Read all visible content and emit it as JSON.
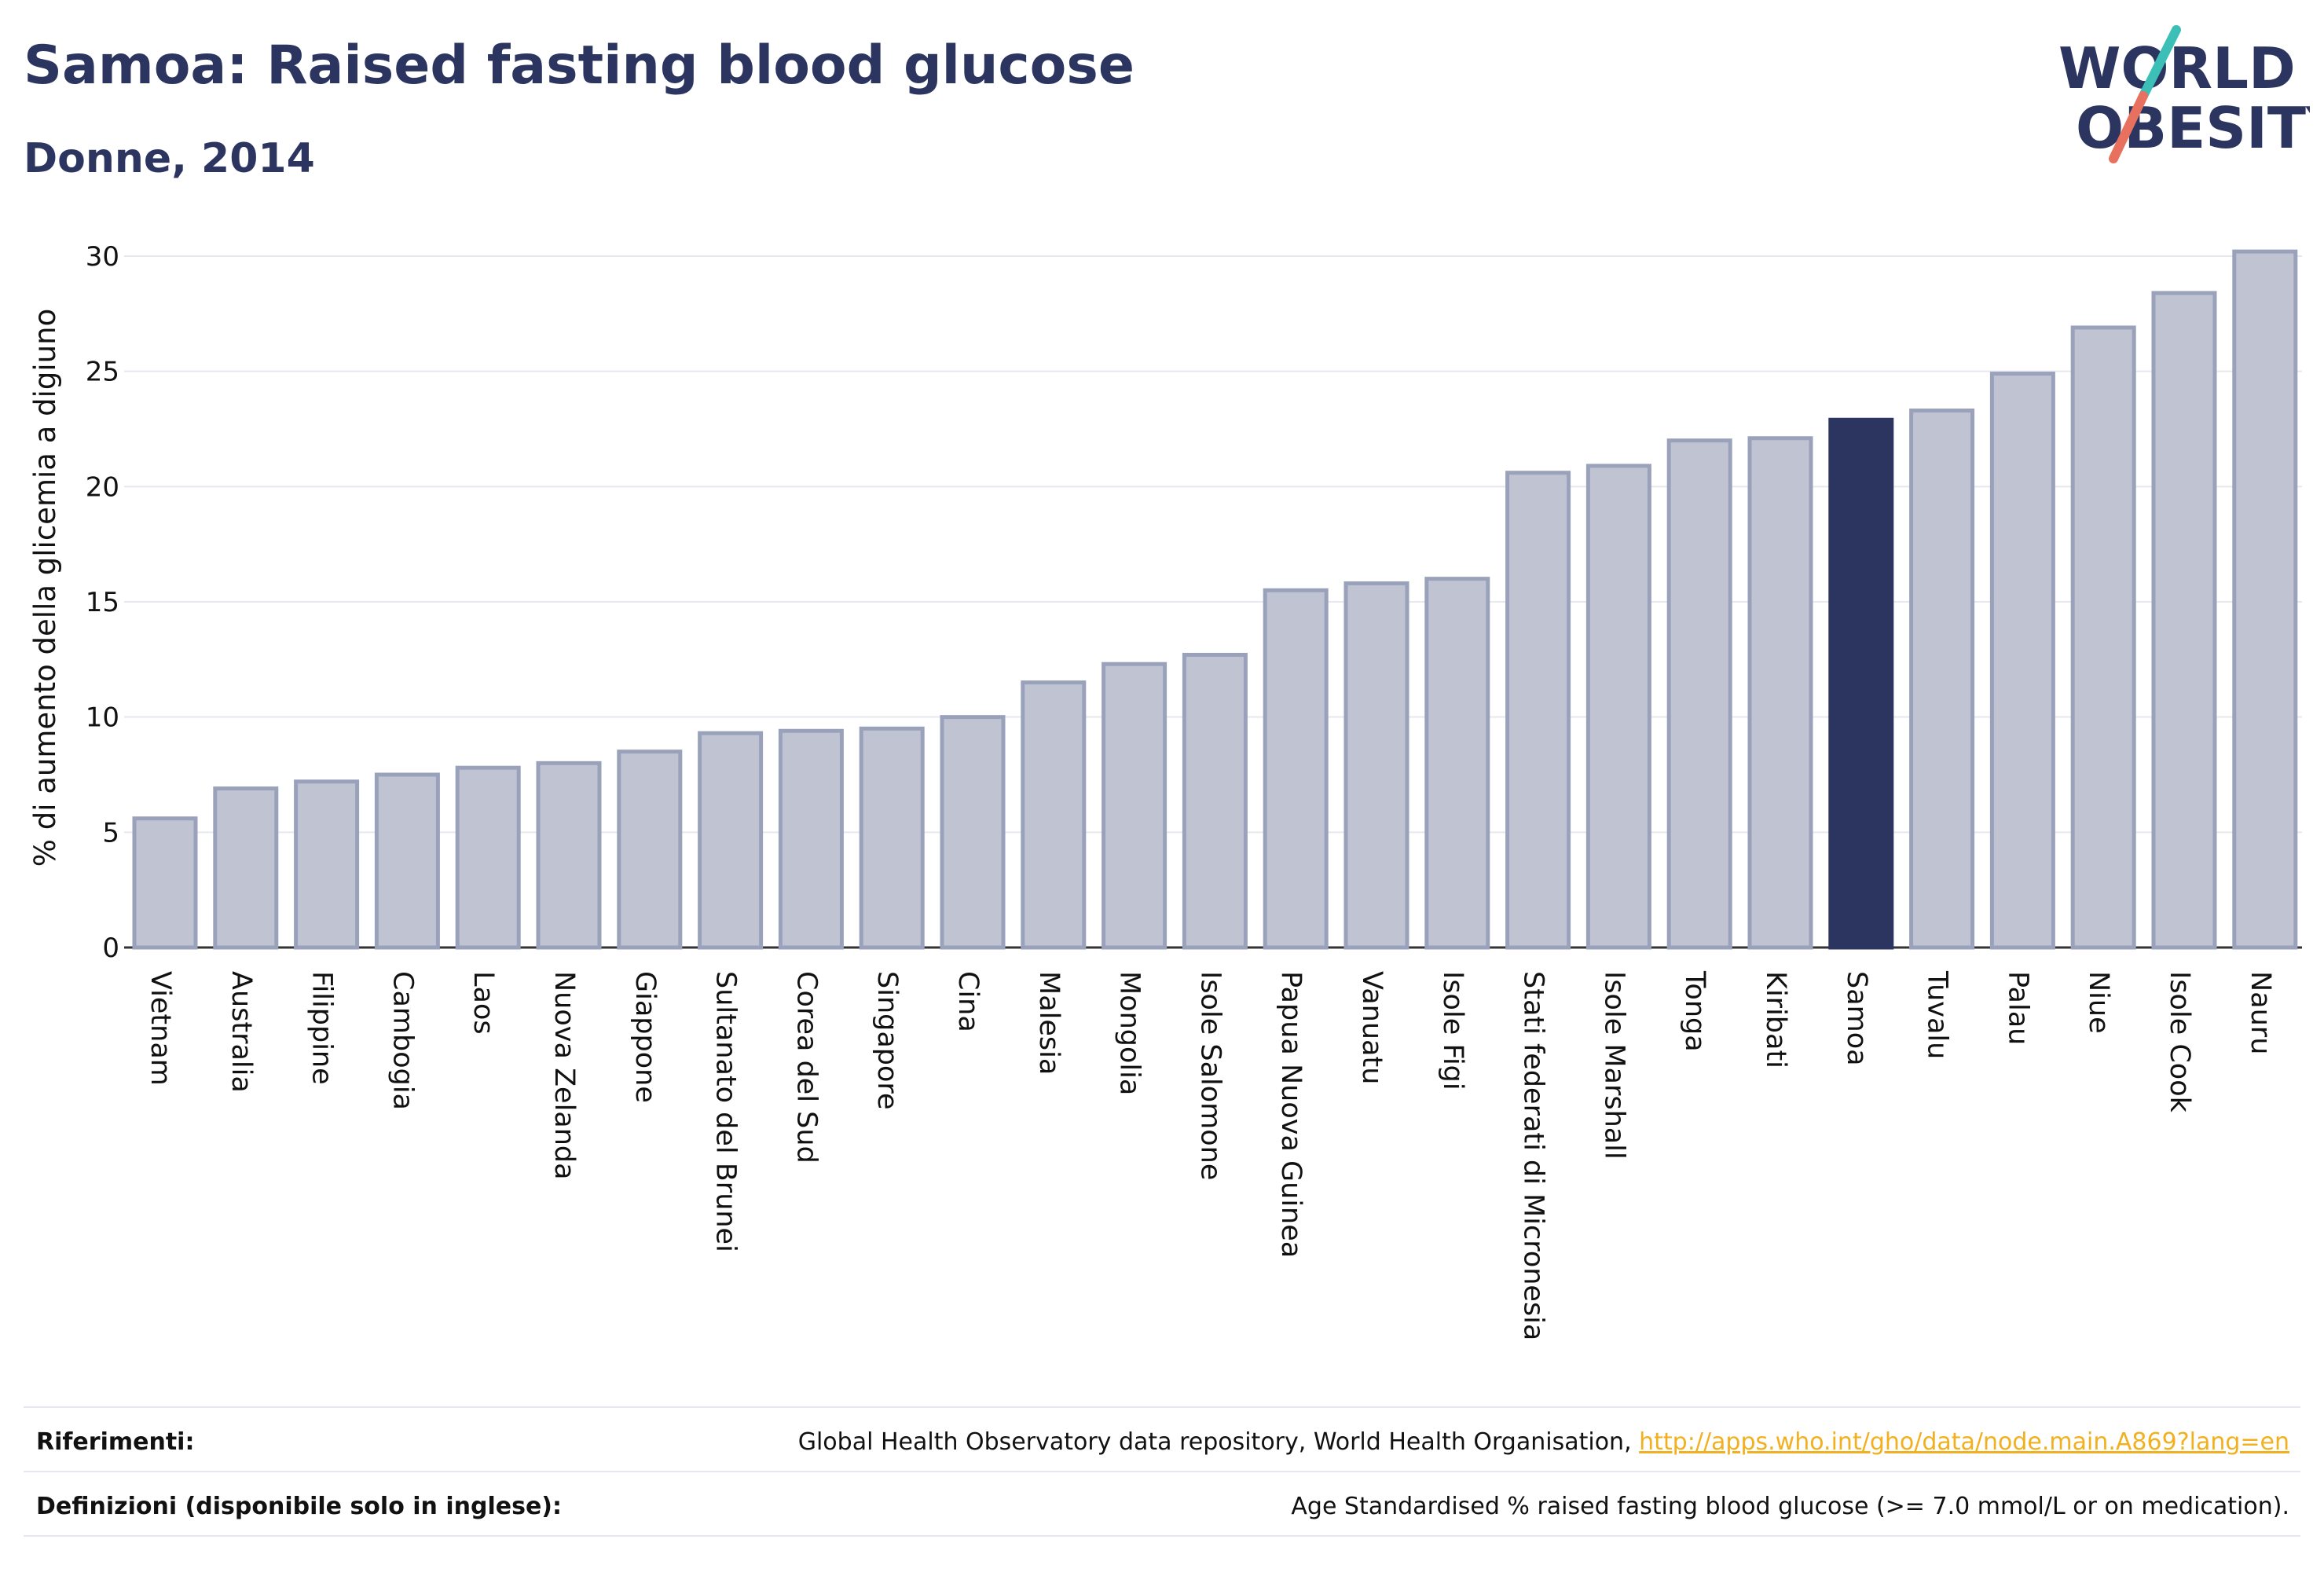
{
  "title": "Samoa: Raised fasting blood glucose",
  "subtitle": "Donne, 2014",
  "logo": {
    "line1": "WORLD",
    "line2": "OBESITY"
  },
  "colors": {
    "bar": "#c0c4d2",
    "bar_border": "#9aa2bb",
    "highlight": "#2b3560",
    "title": "#2b3560",
    "link": "#f2b01e"
  },
  "chart_data": {
    "type": "bar",
    "ylabel": "% di aumento della glicemia a digiuno",
    "xlabel": "",
    "ylim": [
      0,
      30
    ],
    "yticks": [
      0,
      5,
      10,
      15,
      20,
      25,
      30
    ],
    "grid": true,
    "highlight": "Samoa",
    "categories": [
      "Vietnam",
      "Australia",
      "Filippine",
      "Cambogia",
      "Laos",
      "Nuova Zelanda",
      "Giappone",
      "Sultanato del Brunei",
      "Corea del Sud",
      "Singapore",
      "Cina",
      "Malesia",
      "Mongolia",
      "Isole Salomone",
      "Papua Nuova Guinea",
      "Vanuatu",
      "Isole Figi",
      "Stati federati di Micronesia",
      "Isole Marshall",
      "Tonga",
      "Kiribati",
      "Samoa",
      "Tuvalu",
      "Palau",
      "Niue",
      "Isole Cook",
      "Nauru"
    ],
    "values": [
      5.6,
      6.9,
      7.2,
      7.5,
      7.8,
      8.0,
      8.5,
      9.3,
      9.4,
      9.5,
      10.0,
      11.5,
      12.3,
      12.7,
      15.5,
      15.8,
      16.0,
      20.6,
      20.9,
      22.0,
      22.1,
      22.9,
      23.3,
      24.9,
      26.9,
      28.4,
      30.2
    ]
  },
  "footer": {
    "references_label": "Riferimenti:",
    "references_text": "Global Health Observatory data repository, World Health Organisation, ",
    "references_link": "http://apps.who.int/gho/data/node.main.A869?lang=en",
    "definitions_label": "Definizioni (disponibile solo in inglese):",
    "definitions_text": "Age Standardised % raised fasting blood glucose (>= 7.0 mmol/L or on medication)."
  }
}
